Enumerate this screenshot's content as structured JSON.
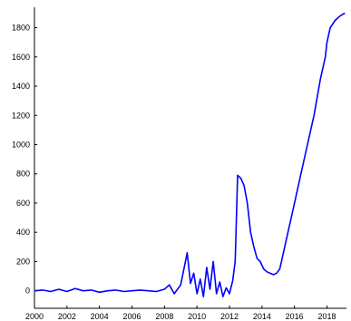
{
  "chart_data": {
    "type": "line",
    "title": "",
    "xlabel": "",
    "ylabel": "",
    "xlim": [
      2000,
      2019.2
    ],
    "ylim": [
      -120,
      1940
    ],
    "x_ticks": [
      2000,
      2002,
      2004,
      2006,
      2008,
      2010,
      2012,
      2014,
      2016,
      2018
    ],
    "x_tick_labels": [
      "2000",
      "2002",
      "2004",
      "2006",
      "2008",
      "2010",
      "2012",
      "2014",
      "2016",
      "2018"
    ],
    "y_ticks": [
      0,
      200,
      400,
      600,
      800,
      1000,
      1200,
      1400,
      1600,
      1800
    ],
    "y_tick_labels": [
      "0",
      "200",
      "400",
      "600",
      "800",
      "1000",
      "1200",
      "1400",
      "1600",
      "1800"
    ],
    "grid": false,
    "legend": "none",
    "series": [
      {
        "color": "#0000ff",
        "x": [
          2000.0,
          2000.5,
          2001.0,
          2001.5,
          2002.0,
          2002.5,
          2003.0,
          2003.5,
          2004.0,
          2004.5,
          2005.0,
          2005.5,
          2006.0,
          2006.5,
          2007.0,
          2007.5,
          2008.0,
          2008.3,
          2008.6,
          2009.0,
          2009.2,
          2009.4,
          2009.6,
          2009.8,
          2010.0,
          2010.2,
          2010.4,
          2010.6,
          2010.8,
          2011.0,
          2011.2,
          2011.4,
          2011.6,
          2011.8,
          2012.0,
          2012.2,
          2012.35,
          2012.5,
          2012.7,
          2012.9,
          2013.1,
          2013.3,
          2013.5,
          2013.7,
          2013.9,
          2014.1,
          2014.3,
          2014.5,
          2014.7,
          2014.9,
          2015.1,
          2015.3,
          2015.6,
          2016.0,
          2016.4,
          2016.8,
          2017.2,
          2017.6,
          2017.9,
          2018.0,
          2018.2,
          2018.5,
          2018.8,
          2019.1
        ],
        "y": [
          0,
          5,
          -5,
          10,
          -5,
          15,
          0,
          5,
          -10,
          0,
          5,
          -5,
          0,
          5,
          0,
          -5,
          10,
          40,
          -20,
          40,
          150,
          260,
          50,
          120,
          -20,
          80,
          -40,
          160,
          10,
          200,
          -20,
          60,
          -40,
          20,
          -20,
          70,
          200,
          790,
          770,
          720,
          600,
          400,
          300,
          220,
          200,
          150,
          130,
          120,
          110,
          120,
          150,
          250,
          400,
          600,
          800,
          1000,
          1200,
          1450,
          1600,
          1700,
          1800,
          1850,
          1880,
          1900
        ]
      }
    ]
  }
}
